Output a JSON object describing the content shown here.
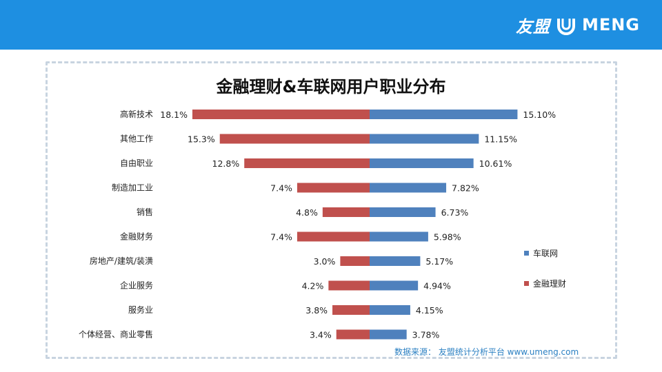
{
  "header": {
    "brand_cn": "友盟",
    "brand_en": "MENG",
    "brand_icon": "umeng-u-icon"
  },
  "colors": {
    "header_bg": "#1e8fe1",
    "series_left": "#c0504d",
    "series_right": "#4f81bd"
  },
  "chart_data": {
    "type": "bar",
    "orientation": "horizontal-diverging",
    "title": "金融理财&车联网用户职业分布",
    "categories": [
      "高新技术",
      "其他工作",
      "自由职业",
      "制造加工业",
      "销售",
      "金融财务",
      "房地产/建筑/装潢",
      "企业服务",
      "服务业",
      "个体经营、商业零售"
    ],
    "series": [
      {
        "name": "金融理财",
        "side": "left",
        "color": "#c0504d",
        "values": [
          18.1,
          15.3,
          12.8,
          7.4,
          4.8,
          7.4,
          3.0,
          4.2,
          3.8,
          3.4
        ],
        "labels": [
          "18.1%",
          "15.3%",
          "12.8%",
          "7.4%",
          "4.8%",
          "7.4%",
          "3.0%",
          "4.2%",
          "3.8%",
          "3.4%"
        ]
      },
      {
        "name": "车联网",
        "side": "right",
        "color": "#4f81bd",
        "values": [
          15.1,
          11.15,
          10.61,
          7.82,
          6.73,
          5.98,
          5.17,
          4.94,
          4.15,
          3.78
        ],
        "labels": [
          "15.10%",
          "11.15%",
          "10.61%",
          "7.82%",
          "6.73%",
          "5.98%",
          "5.17%",
          "4.94%",
          "4.15%",
          "3.78%"
        ]
      }
    ],
    "legend": [
      {
        "label": "车联网",
        "color": "#4f81bd"
      },
      {
        "label": "金融理财",
        "color": "#c0504d"
      }
    ],
    "legend_position": "right",
    "grid": false
  },
  "footer": {
    "source": "数据来源： 友盟统计分析平台 www.umeng.com"
  }
}
